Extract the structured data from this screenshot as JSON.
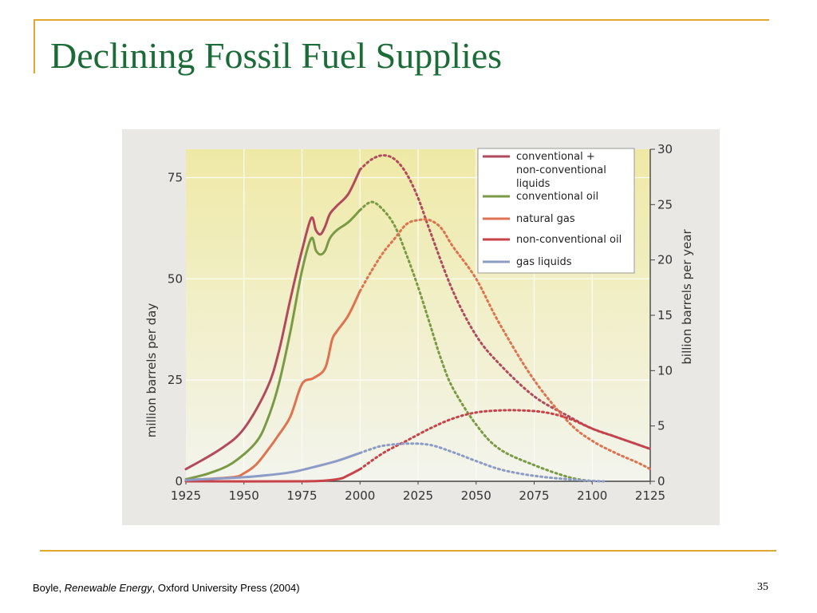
{
  "slide": {
    "title": "Declining Fossil Fuel Supplies",
    "page_number": "35",
    "title_color": "#1b6b37",
    "accent_color": "#e0a82e"
  },
  "citation": {
    "author": "Boyle,",
    "work": "Renewable Energy",
    "publisher": ", Oxford University Press (2004)"
  },
  "chart_data": {
    "type": "line",
    "title": "",
    "xlabel": "",
    "ylabel": "million barrels per day",
    "y2label": "billion barrels per year",
    "xlim": [
      1925,
      2125
    ],
    "ylim": [
      0,
      82
    ],
    "y2lim": [
      0,
      30
    ],
    "x_ticks": [
      "1925",
      "1950",
      "1975",
      "2000",
      "2025",
      "2050",
      "2075",
      "2100",
      "2125"
    ],
    "x_tick_values": [
      1925,
      1950,
      1975,
      2000,
      2025,
      2050,
      2075,
      2100,
      2125
    ],
    "y_ticks": [
      "0",
      "25",
      "50",
      "75"
    ],
    "y_tick_values": [
      0,
      25,
      50,
      75
    ],
    "y2_ticks": [
      "0",
      "5",
      "10",
      "15",
      "20",
      "25",
      "30"
    ],
    "y2_tick_values": [
      0,
      5,
      10,
      15,
      20,
      25,
      30
    ],
    "grid": true,
    "legend_position": "top-right",
    "projection_start": 2000,
    "series": [
      {
        "name": "conventional + non-conventional liquids",
        "color": "#b24a5c",
        "x": [
          1925,
          1940,
          1950,
          1960,
          1965,
          1970,
          1975,
          1979,
          1981,
          1983,
          1985,
          1987,
          1990,
          1995,
          2000,
          2005,
          2010,
          2015,
          2020,
          2025,
          2030,
          2040,
          2050,
          2060,
          2075,
          2090,
          2100,
          2110,
          2120,
          2125
        ],
        "values": [
          3,
          8,
          13,
          23,
          32,
          45,
          57,
          65,
          62,
          61,
          63,
          66,
          68,
          71,
          77,
          79.5,
          80.5,
          79.5,
          76,
          70,
          62,
          47,
          36,
          29,
          21,
          16,
          13,
          11,
          9,
          8
        ]
      },
      {
        "name": "conventional oil",
        "color": "#7a9a45",
        "x": [
          1925,
          1935,
          1945,
          1955,
          1960,
          1965,
          1970,
          1975,
          1979,
          1981,
          1983,
          1985,
          1987,
          1990,
          1995,
          2000,
          2005,
          2010,
          2015,
          2020,
          2025,
          2030,
          2035,
          2040,
          2050,
          2060,
          2075,
          2090,
          2100
        ],
        "values": [
          0.5,
          2,
          4.5,
          9.5,
          15,
          24,
          37,
          52,
          60,
          57,
          56,
          57,
          60,
          62,
          64,
          67,
          69,
          67,
          63,
          56,
          48,
          39,
          30,
          23,
          14,
          8,
          4,
          1,
          0
        ]
      },
      {
        "name": "natural gas",
        "color": "#e0724f",
        "x": [
          1925,
          1945,
          1950,
          1955,
          1960,
          1965,
          1970,
          1975,
          1980,
          1985,
          1988,
          1990,
          1995,
          2000,
          2005,
          2010,
          2015,
          2020,
          2025,
          2030,
          2035,
          2040,
          2050,
          2060,
          2075,
          2090,
          2100,
          2110,
          2120,
          2125
        ],
        "values": [
          0.3,
          1,
          2,
          4,
          7.5,
          11.5,
          16,
          24,
          25.5,
          28,
          35,
          37,
          41,
          47,
          52,
          56.5,
          60,
          63.5,
          64.5,
          64.5,
          62.5,
          58,
          50,
          39,
          25,
          14.5,
          10,
          7,
          4.5,
          3
        ]
      },
      {
        "name": "non-conventional oil",
        "color": "#c8424a",
        "x": [
          1925,
          1975,
          1990,
          1995,
          2000,
          2010,
          2020,
          2030,
          2040,
          2050,
          2060,
          2070,
          2080,
          2090,
          2100,
          2110,
          2120,
          2125
        ],
        "values": [
          0,
          0,
          0.5,
          1.5,
          3,
          7,
          10,
          13,
          15.5,
          17,
          17.5,
          17.5,
          17,
          15.5,
          13,
          11,
          9,
          8
        ]
      },
      {
        "name": "gas liquids",
        "color": "#8c9cc6",
        "x": [
          1925,
          1940,
          1950,
          1960,
          1970,
          1975,
          1980,
          1990,
          2000,
          2005,
          2010,
          2020,
          2030,
          2040,
          2050,
          2060,
          2070,
          2080,
          2090,
          2100,
          2105
        ],
        "values": [
          0.3,
          0.7,
          1,
          1.5,
          2.2,
          2.8,
          3.5,
          5,
          7,
          8,
          8.8,
          9.3,
          9,
          7.2,
          5,
          3,
          1.8,
          1,
          0.5,
          0.1,
          0
        ]
      }
    ]
  }
}
